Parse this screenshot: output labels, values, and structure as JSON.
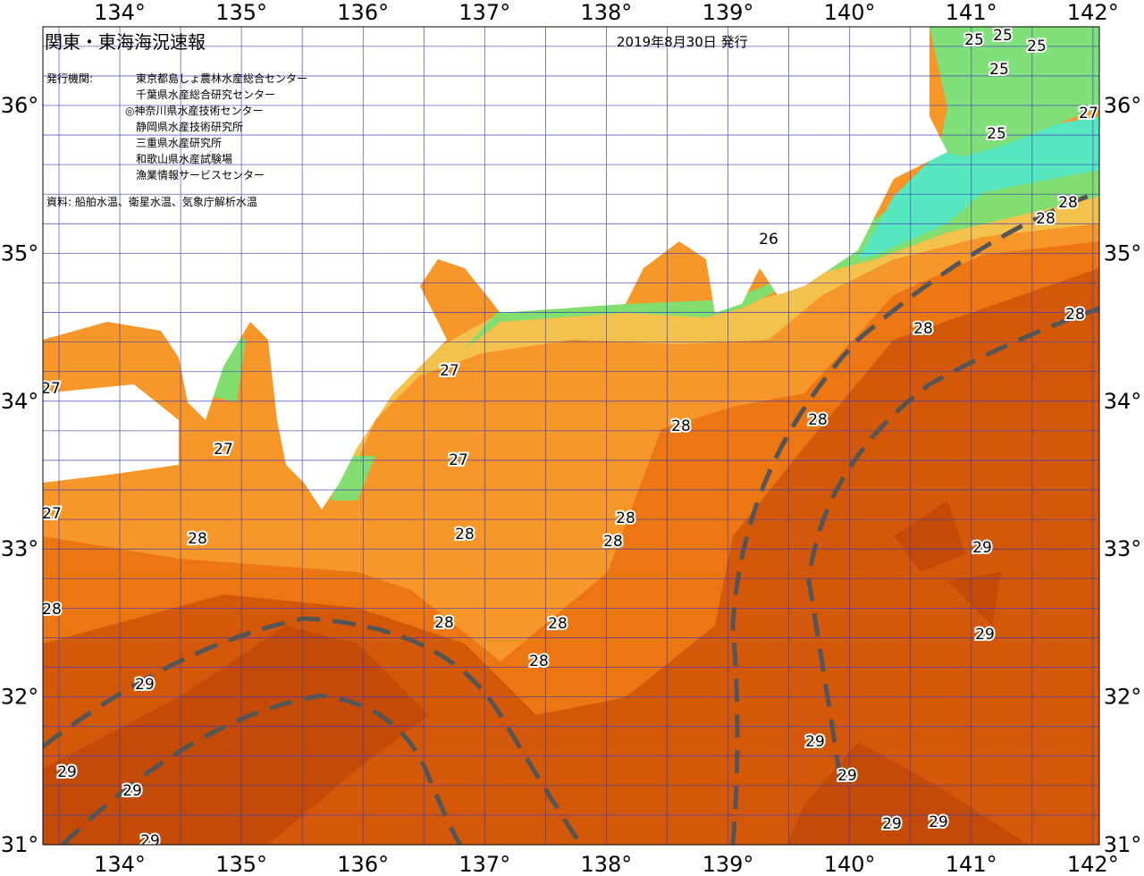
{
  "header": {
    "title": "関東・東海海況速報",
    "date": "2019年8月30日 発行",
    "issuer_label": "発行機関:",
    "issuers": [
      "東京都島しょ農林水産総合センター",
      "千葉県水産総合研究センター",
      "◎神奈川県水産技術センター",
      "静岡県水産技術研究所",
      "三重県水産研究所",
      "和歌山県水産試験場",
      "漁業情報サービスセンター"
    ],
    "source": "資料: 船舶水温、衛星水温、気象庁解析水温"
  },
  "map": {
    "lon_labels": [
      "134°",
      "135°",
      "136°",
      "137°",
      "138°",
      "139°",
      "140°",
      "141°",
      "142°"
    ],
    "lat_labels": [
      "36°",
      "35°",
      "34°",
      "33°",
      "32°",
      "31°"
    ],
    "isotherm_labels": [
      25,
      25,
      25,
      25,
      25,
      27,
      28,
      28,
      26,
      28,
      28,
      27,
      27,
      28,
      28,
      27,
      27,
      27,
      28,
      28,
      28,
      28,
      29,
      28,
      28,
      28,
      29,
      28,
      29,
      29,
      29,
      29,
      29,
      29,
      29,
      29
    ]
  }
}
